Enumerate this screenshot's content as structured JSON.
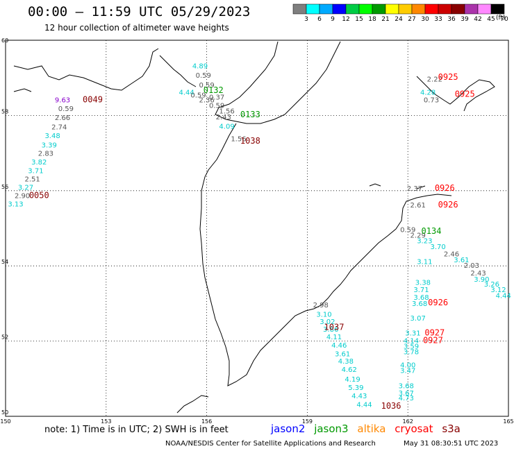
{
  "header": {
    "title": "00:00 – 11:59 UTC 05/29/2023",
    "subtitle": "12 hour collection of altimeter wave heights",
    "unit": "(ft)"
  },
  "colorbar": {
    "colors": [
      "#7f7f7f",
      "#00ffff",
      "#00aaff",
      "#0000ff",
      "#00cc44",
      "#00ff00",
      "#009900",
      "#ffff00",
      "#ffcc00",
      "#ff8800",
      "#ff0000",
      "#cc0000",
      "#880000",
      "#aa33aa",
      "#ff88ff",
      "#000000"
    ],
    "labels": [
      "3",
      "6",
      "9",
      "12",
      "15",
      "18",
      "21",
      "24",
      "27",
      "30",
      "33",
      "36",
      "39",
      "42",
      "45",
      "70"
    ]
  },
  "axes": {
    "lon": {
      "min": 150,
      "max": 165,
      "ticks": [
        "150",
        "153",
        "156",
        "159",
        "162",
        "165"
      ]
    },
    "lat": {
      "min": 50,
      "max": 60,
      "ticks": [
        "60",
        "58",
        "56",
        "54",
        "52",
        "50"
      ]
    }
  },
  "legend": {
    "note": "note: 1) Time is in UTC; 2) SWH is in feet",
    "missions": [
      {
        "name": "jason2",
        "color": "#0000ff"
      },
      {
        "name": "jason3",
        "color": "#009900"
      },
      {
        "name": "altika",
        "color": "#ff8800"
      },
      {
        "name": "cryosat",
        "color": "#ff0000"
      },
      {
        "name": "s3a",
        "color": "#880000"
      }
    ]
  },
  "footer": {
    "credit": "NOAA/NESDIS Center for Satellite Applications and Research",
    "generated": "May 31 08:30:51 UTC 2023"
  },
  "chart_data": {
    "type": "scatter",
    "xlabel": "",
    "ylabel": "",
    "xlim": [
      150,
      165
    ],
    "ylim": [
      50,
      60
    ],
    "grid": true,
    "time_labels": [
      {
        "text": "0049",
        "lon": 152.6,
        "lat": 58.35,
        "color": "#880000"
      },
      {
        "text": "0050",
        "lon": 151.0,
        "lat": 55.8,
        "color": "#880000"
      },
      {
        "text": "0132",
        "lon": 156.2,
        "lat": 58.6,
        "color": "#009900"
      },
      {
        "text": "0133",
        "lon": 157.3,
        "lat": 57.95,
        "color": "#009900"
      },
      {
        "text": "1038",
        "lon": 157.3,
        "lat": 57.25,
        "color": "#880000"
      },
      {
        "text": "1037",
        "lon": 159.8,
        "lat": 52.3,
        "color": "#880000"
      },
      {
        "text": "1036",
        "lon": 161.5,
        "lat": 50.2,
        "color": "#880000"
      },
      {
        "text": "0925",
        "lon": 163.2,
        "lat": 58.95,
        "color": "#ff0000"
      },
      {
        "text": "0925",
        "lon": 163.7,
        "lat": 58.5,
        "color": "#ff0000"
      },
      {
        "text": "0926",
        "lon": 163.1,
        "lat": 56.0,
        "color": "#ff0000"
      },
      {
        "text": "0926",
        "lon": 163.2,
        "lat": 55.55,
        "color": "#ff0000"
      },
      {
        "text": "0134",
        "lon": 162.7,
        "lat": 54.85,
        "color": "#009900"
      },
      {
        "text": "0926",
        "lon": 162.9,
        "lat": 52.95,
        "color": "#ff0000"
      },
      {
        "text": "0927",
        "lon": 162.8,
        "lat": 52.15,
        "color": "#ff0000"
      },
      {
        "text": "0927",
        "lon": 162.75,
        "lat": 51.95,
        "color": "#ff0000"
      }
    ],
    "points": [
      {
        "v": "9.63",
        "lon": 151.7,
        "lat": 58.35,
        "color": "#8800cc"
      },
      {
        "v": "0.59",
        "lon": 151.8,
        "lat": 58.12,
        "color": "#555555"
      },
      {
        "v": "2.66",
        "lon": 151.7,
        "lat": 57.88,
        "color": "#555555"
      },
      {
        "v": "2.74",
        "lon": 151.6,
        "lat": 57.63,
        "color": "#555555"
      },
      {
        "v": "3.48",
        "lon": 151.4,
        "lat": 57.4,
        "color": "#00cccc"
      },
      {
        "v": "3.39",
        "lon": 151.3,
        "lat": 57.15,
        "color": "#00cccc"
      },
      {
        "v": "2.83",
        "lon": 151.2,
        "lat": 56.93,
        "color": "#555555"
      },
      {
        "v": "3.82",
        "lon": 151.0,
        "lat": 56.7,
        "color": "#00cccc"
      },
      {
        "v": "3.71",
        "lon": 150.9,
        "lat": 56.47,
        "color": "#00cccc"
      },
      {
        "v": "2.51",
        "lon": 150.8,
        "lat": 56.25,
        "color": "#555555"
      },
      {
        "v": "3.27",
        "lon": 150.6,
        "lat": 56.02,
        "color": "#00cccc"
      },
      {
        "v": "2.90",
        "lon": 150.5,
        "lat": 55.8,
        "color": "#555555"
      },
      {
        "v": "3.13",
        "lon": 150.3,
        "lat": 55.58,
        "color": "#00cccc"
      },
      {
        "v": "4.89",
        "lon": 155.8,
        "lat": 59.25,
        "color": "#00cccc"
      },
      {
        "v": "0.59",
        "lon": 155.9,
        "lat": 59.0,
        "color": "#555555"
      },
      {
        "v": "0.59",
        "lon": 156.0,
        "lat": 58.75,
        "color": "#555555"
      },
      {
        "v": "4.44",
        "lon": 155.4,
        "lat": 58.55,
        "color": "#00cccc"
      },
      {
        "v": "0.59",
        "lon": 155.75,
        "lat": 58.48,
        "color": "#555555"
      },
      {
        "v": "2.36",
        "lon": 156.0,
        "lat": 58.35,
        "color": "#555555"
      },
      {
        "v": "0.37",
        "lon": 156.3,
        "lat": 58.42,
        "color": "#555555"
      },
      {
        "v": "0.59",
        "lon": 156.3,
        "lat": 58.2,
        "color": "#555555"
      },
      {
        "v": "1.56",
        "lon": 156.6,
        "lat": 58.05,
        "color": "#555555"
      },
      {
        "v": "2.43",
        "lon": 156.5,
        "lat": 57.9,
        "color": "#555555"
      },
      {
        "v": "4.09",
        "lon": 156.6,
        "lat": 57.65,
        "color": "#00cccc"
      },
      {
        "v": "1.56",
        "lon": 156.95,
        "lat": 57.32,
        "color": "#555555"
      },
      {
        "v": "2.22",
        "lon": 162.8,
        "lat": 58.9,
        "color": "#555555"
      },
      {
        "v": "4.28",
        "lon": 162.6,
        "lat": 58.55,
        "color": "#00cccc"
      },
      {
        "v": "0.73",
        "lon": 162.7,
        "lat": 58.35,
        "color": "#555555"
      },
      {
        "v": "2.37",
        "lon": 162.2,
        "lat": 56.0,
        "color": "#555555"
      },
      {
        "v": "2.61",
        "lon": 162.3,
        "lat": 55.55,
        "color": "#555555"
      },
      {
        "v": "0.59",
        "lon": 162.0,
        "lat": 54.9,
        "color": "#555555"
      },
      {
        "v": "2.29",
        "lon": 162.3,
        "lat": 54.75,
        "color": "#555555"
      },
      {
        "v": "3.23",
        "lon": 162.5,
        "lat": 54.6,
        "color": "#00cccc"
      },
      {
        "v": "3.70",
        "lon": 162.9,
        "lat": 54.45,
        "color": "#00cccc"
      },
      {
        "v": "2.46",
        "lon": 163.3,
        "lat": 54.25,
        "color": "#555555"
      },
      {
        "v": "3.61",
        "lon": 163.6,
        "lat": 54.1,
        "color": "#00cccc"
      },
      {
        "v": "3.11",
        "lon": 162.5,
        "lat": 54.05,
        "color": "#00cccc"
      },
      {
        "v": "2.03",
        "lon": 163.9,
        "lat": 53.95,
        "color": "#555555"
      },
      {
        "v": "2.43",
        "lon": 164.1,
        "lat": 53.75,
        "color": "#555555"
      },
      {
        "v": "3.90",
        "lon": 164.2,
        "lat": 53.58,
        "color": "#00cccc"
      },
      {
        "v": "3.26",
        "lon": 164.5,
        "lat": 53.45,
        "color": "#00cccc"
      },
      {
        "v": "3.12",
        "lon": 164.7,
        "lat": 53.3,
        "color": "#00cccc"
      },
      {
        "v": "4.44",
        "lon": 164.85,
        "lat": 53.15,
        "color": "#00cccc"
      },
      {
        "v": "3.38",
        "lon": 162.45,
        "lat": 53.5,
        "color": "#00cccc"
      },
      {
        "v": "3.71",
        "lon": 162.4,
        "lat": 53.3,
        "color": "#00cccc"
      },
      {
        "v": "3.68",
        "lon": 162.4,
        "lat": 53.1,
        "color": "#00cccc"
      },
      {
        "v": "3.68",
        "lon": 162.35,
        "lat": 52.93,
        "color": "#00cccc"
      },
      {
        "v": "3.07",
        "lon": 162.3,
        "lat": 52.55,
        "color": "#00cccc"
      },
      {
        "v": "3.31",
        "lon": 162.15,
        "lat": 52.15,
        "color": "#00cccc"
      },
      {
        "v": "4.14",
        "lon": 162.1,
        "lat": 51.95,
        "color": "#00cccc"
      },
      {
        "v": "3.59",
        "lon": 162.1,
        "lat": 51.8,
        "color": "#00cccc"
      },
      {
        "v": "3.78",
        "lon": 162.1,
        "lat": 51.65,
        "color": "#00cccc"
      },
      {
        "v": "4.00",
        "lon": 162.0,
        "lat": 51.3,
        "color": "#00cccc"
      },
      {
        "v": "3.47",
        "lon": 162.0,
        "lat": 51.15,
        "color": "#00cccc"
      },
      {
        "v": "3.68",
        "lon": 161.95,
        "lat": 50.75,
        "color": "#00cccc"
      },
      {
        "v": "3.67",
        "lon": 161.95,
        "lat": 50.55,
        "color": "#00cccc"
      },
      {
        "v": "4.73",
        "lon": 161.95,
        "lat": 50.42,
        "color": "#00cccc"
      },
      {
        "v": "2.98",
        "lon": 159.4,
        "lat": 52.9,
        "color": "#555555"
      },
      {
        "v": "3.10",
        "lon": 159.5,
        "lat": 52.65,
        "color": "#00cccc"
      },
      {
        "v": "3.02",
        "lon": 159.6,
        "lat": 52.45,
        "color": "#00cccc"
      },
      {
        "v": "3.86",
        "lon": 159.7,
        "lat": 52.25,
        "color": "#00cccc"
      },
      {
        "v": "4.11",
        "lon": 159.8,
        "lat": 52.05,
        "color": "#00cccc"
      },
      {
        "v": "4.46",
        "lon": 159.95,
        "lat": 51.83,
        "color": "#00cccc"
      },
      {
        "v": "3.61",
        "lon": 160.05,
        "lat": 51.6,
        "color": "#00cccc"
      },
      {
        "v": "4.38",
        "lon": 160.15,
        "lat": 51.4,
        "color": "#00cccc"
      },
      {
        "v": "4.62",
        "lon": 160.25,
        "lat": 51.18,
        "color": "#00cccc"
      },
      {
        "v": "4.19",
        "lon": 160.35,
        "lat": 50.92,
        "color": "#00cccc"
      },
      {
        "v": "5.39",
        "lon": 160.45,
        "lat": 50.7,
        "color": "#00cccc"
      },
      {
        "v": "4.43",
        "lon": 160.55,
        "lat": 50.48,
        "color": "#00cccc"
      },
      {
        "v": "4.44",
        "lon": 160.7,
        "lat": 50.25,
        "color": "#00cccc"
      }
    ]
  }
}
